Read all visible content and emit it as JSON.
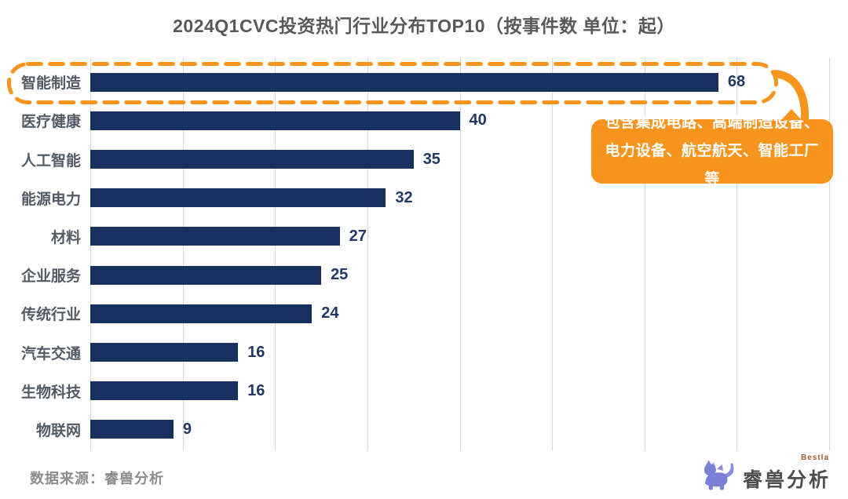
{
  "title": "2024Q1CVC投资热门行业分布TOP10（按事件数 单位：起）",
  "chart_data": {
    "type": "bar",
    "orientation": "horizontal",
    "title": "2024Q1CVC投资热门行业分布TOP10（按事件数 单位：起）",
    "categories": [
      "智能制造",
      "医疗健康",
      "人工智能",
      "能源电力",
      "材料",
      "企业服务",
      "传统行业",
      "汽车交通",
      "生物科技",
      "物联网"
    ],
    "values": [
      68,
      40,
      35,
      32,
      27,
      25,
      24,
      16,
      16,
      9
    ],
    "xlim": [
      0,
      80
    ],
    "gridline_step": 10,
    "grid": true,
    "legend": false,
    "value_labels": true
  },
  "highlight": {
    "category": "智能制造",
    "style": "orange-dashed-outline"
  },
  "callout": {
    "text": "包含集成电路、高端制造设备、电力设备、航空航天、智能工厂等"
  },
  "footer": {
    "source": "数据来源：睿兽分析"
  },
  "logo": {
    "name": "睿兽分析",
    "sub": "Bestla",
    "icon": "beast-icon"
  },
  "colors": {
    "bar_navy": "#17305f",
    "value_navy": "#1f3864",
    "accent_orange": "#f7941d",
    "title_gray": "#595959",
    "grid_gray": "#d9d9d9",
    "source_gray": "#8c8c8c",
    "logo_purple": "#7b7fd8"
  }
}
